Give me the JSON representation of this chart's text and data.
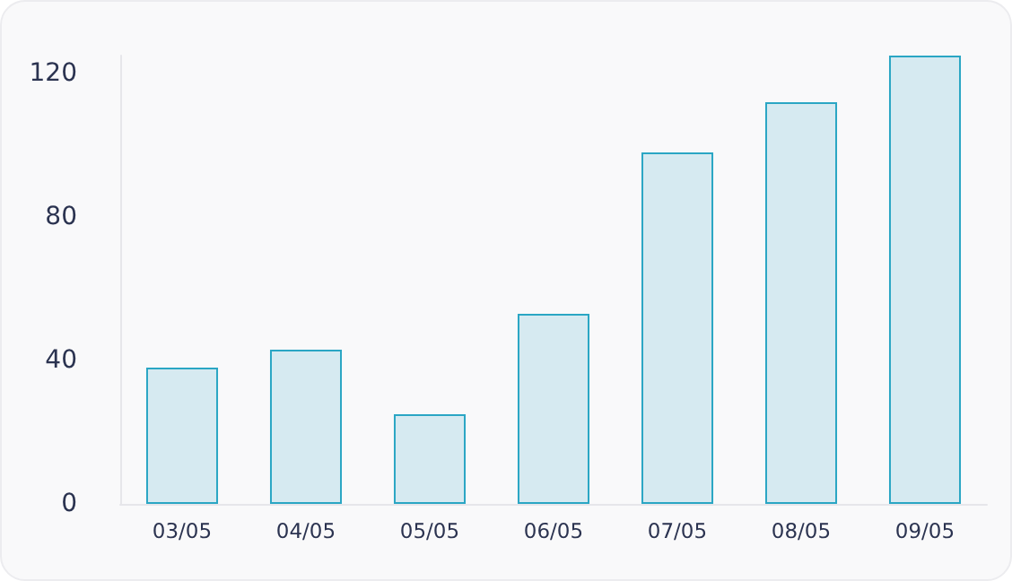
{
  "chart_data": {
    "type": "bar",
    "categories": [
      "03/05",
      "04/05",
      "05/05",
      "06/05",
      "07/05",
      "08/05",
      "09/05"
    ],
    "values": [
      38,
      43,
      25,
      53,
      98,
      112,
      125
    ],
    "color": "#d6eaf1",
    "ylim": [
      0,
      125
    ],
    "yticks": [
      0,
      40,
      80,
      120
    ],
    "grid": false
  }
}
